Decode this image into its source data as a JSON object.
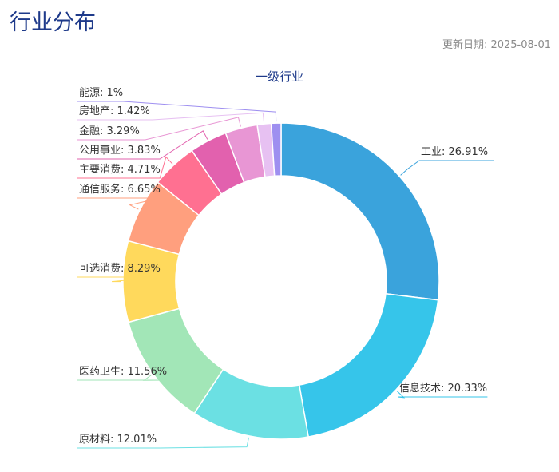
{
  "page": {
    "title": "行业分布",
    "update_date": "更新日期: 2025-08-01"
  },
  "chart_data": {
    "type": "pie",
    "subtype": "donut",
    "title": "一级行业",
    "label_format": "{name}: {value}%",
    "slices": [
      {
        "name": "工业",
        "value": 26.91,
        "color": "#3aa3dc"
      },
      {
        "name": "信息技术",
        "value": 20.33,
        "color": "#36c5ea"
      },
      {
        "name": "原材料",
        "value": 12.01,
        "color": "#6be0e3"
      },
      {
        "name": "医药卫生",
        "value": 11.56,
        "color": "#a2e6b7"
      },
      {
        "name": "可选消费",
        "value": 8.29,
        "color": "#ffd95c"
      },
      {
        "name": "通信服务",
        "value": 6.65,
        "color": "#ff9f7e"
      },
      {
        "name": "主要消费",
        "value": 4.71,
        "color": "#ff7091"
      },
      {
        "name": "公用事业",
        "value": 3.83,
        "color": "#e261ae"
      },
      {
        "name": "金融",
        "value": 3.29,
        "color": "#e896d4"
      },
      {
        "name": "房地产",
        "value": 1.42,
        "color": "#e7c1f2"
      },
      {
        "name": "能源",
        "value": 1,
        "color": "#9e8ff0"
      }
    ]
  }
}
